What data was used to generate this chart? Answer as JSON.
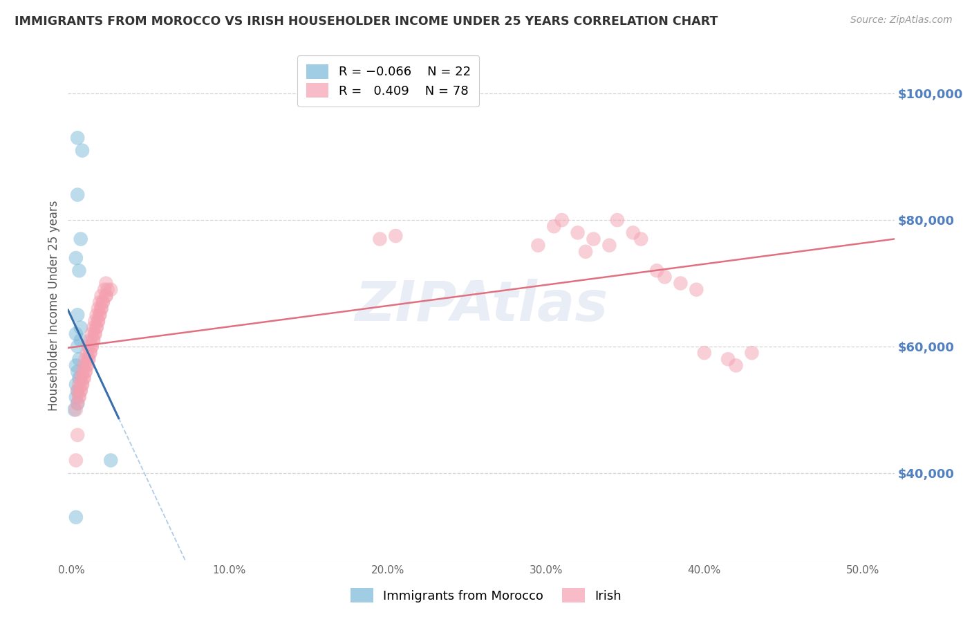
{
  "title": "IMMIGRANTS FROM MOROCCO VS IRISH HOUSEHOLDER INCOME UNDER 25 YEARS CORRELATION CHART",
  "source": "Source: ZipAtlas.com",
  "ylabel": "Householder Income Under 25 years",
  "ylim": [
    26000,
    107000
  ],
  "xlim": [
    -0.002,
    0.52
  ],
  "blue_color": "#7ab8d9",
  "pink_color": "#f4a0b0",
  "blue_line_color": "#3a6eaa",
  "pink_line_color": "#e07080",
  "dashed_line_color": "#b0cce8",
  "watermark": "ZIPAtlas",
  "background_color": "#ffffff",
  "grid_color": "#cccccc",
  "axis_label_color": "#5080c0",
  "title_color": "#333333",
  "morocco_x": [
    0.004,
    0.007,
    0.004,
    0.006,
    0.003,
    0.005,
    0.004,
    0.006,
    0.003,
    0.006,
    0.004,
    0.005,
    0.003,
    0.004,
    0.005,
    0.003,
    0.004,
    0.003,
    0.004,
    0.002,
    0.025,
    0.003
  ],
  "morocco_y": [
    93000,
    91000,
    84000,
    77000,
    74000,
    72000,
    65000,
    63000,
    62000,
    61000,
    60000,
    58000,
    57000,
    56000,
    55000,
    54000,
    53000,
    52000,
    51000,
    50000,
    42000,
    33000
  ],
  "irish_x": [
    0.003,
    0.004,
    0.005,
    0.004,
    0.005,
    0.006,
    0.005,
    0.006,
    0.007,
    0.006,
    0.007,
    0.008,
    0.007,
    0.008,
    0.009,
    0.008,
    0.009,
    0.01,
    0.009,
    0.01,
    0.011,
    0.01,
    0.011,
    0.012,
    0.011,
    0.012,
    0.013,
    0.012,
    0.013,
    0.014,
    0.013,
    0.014,
    0.015,
    0.014,
    0.015,
    0.016,
    0.015,
    0.016,
    0.017,
    0.016,
    0.017,
    0.018,
    0.017,
    0.018,
    0.019,
    0.018,
    0.019,
    0.02,
    0.019,
    0.02,
    0.022,
    0.021,
    0.022,
    0.023,
    0.022,
    0.025,
    0.003,
    0.004,
    0.195,
    0.205,
    0.295,
    0.305,
    0.31,
    0.32,
    0.325,
    0.33,
    0.34,
    0.345,
    0.355,
    0.36,
    0.37,
    0.375,
    0.385,
    0.395,
    0.4,
    0.415,
    0.42,
    0.43
  ],
  "irish_y": [
    50000,
    51000,
    52000,
    53000,
    52000,
    53000,
    54000,
    53000,
    54000,
    55000,
    54000,
    55000,
    56000,
    55000,
    56000,
    57000,
    56000,
    57000,
    58000,
    57000,
    58000,
    59000,
    58000,
    59000,
    60000,
    59000,
    60000,
    61000,
    60000,
    61000,
    62000,
    61000,
    62000,
    63000,
    62000,
    63000,
    64000,
    63000,
    64000,
    65000,
    64000,
    65000,
    66000,
    65000,
    66000,
    67000,
    66000,
    67000,
    68000,
    67000,
    68000,
    69000,
    68000,
    69000,
    70000,
    69000,
    42000,
    46000,
    77000,
    77500,
    76000,
    79000,
    80000,
    78000,
    75000,
    77000,
    76000,
    80000,
    78000,
    77000,
    72000,
    71000,
    70000,
    69000,
    59000,
    58000,
    57000,
    59000
  ]
}
